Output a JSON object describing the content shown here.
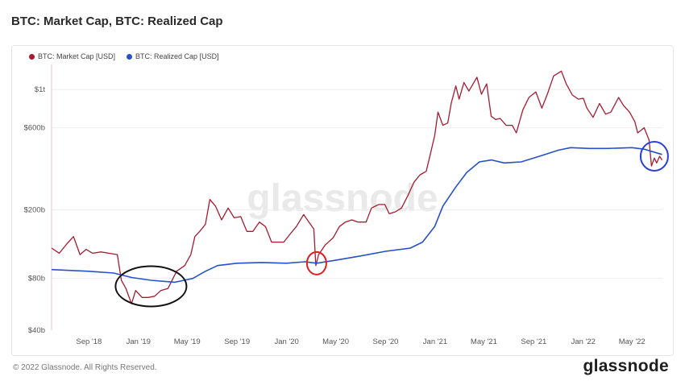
{
  "header": {
    "title": "BTC: Market Cap, BTC: Realized Cap"
  },
  "footer": {
    "copyright": "© 2022 Glassnode. All Rights Reserved.",
    "logo": "glassnode"
  },
  "watermark": "glassnode",
  "colors": {
    "market_cap": "#a51c30",
    "realized_cap": "#2751c9",
    "annotation_black": "#111111",
    "annotation_red": "#e11d1d",
    "annotation_blue": "#2b3fd4"
  },
  "chart_data": {
    "type": "line",
    "title": "BTC: Market Cap, BTC: Realized Cap",
    "y_scale": "log",
    "ylim": [
      40,
      1400
    ],
    "y_ticks": [
      {
        "value": 40,
        "label": "$40b"
      },
      {
        "value": 80,
        "label": "$80b"
      },
      {
        "value": 200,
        "label": "$200b"
      },
      {
        "value": 600,
        "label": "$600b"
      },
      {
        "value": 1000,
        "label": "$1t"
      }
    ],
    "x_range": [
      "2018-06-01",
      "2022-07-15"
    ],
    "x_ticks": [
      {
        "date": "2018-09-01",
        "label": "Sep '18"
      },
      {
        "date": "2019-01-01",
        "label": "Jan '19"
      },
      {
        "date": "2019-05-01",
        "label": "May '19"
      },
      {
        "date": "2019-09-01",
        "label": "Sep '19"
      },
      {
        "date": "2020-01-01",
        "label": "Jan '20"
      },
      {
        "date": "2020-05-01",
        "label": "May '20"
      },
      {
        "date": "2020-09-01",
        "label": "Sep '20"
      },
      {
        "date": "2021-01-01",
        "label": "Jan '21"
      },
      {
        "date": "2021-05-01",
        "label": "May '21"
      },
      {
        "date": "2021-09-01",
        "label": "Sep '21"
      },
      {
        "date": "2022-01-01",
        "label": "Jan '22"
      },
      {
        "date": "2022-05-01",
        "label": "May '22"
      }
    ],
    "grid": true,
    "legend_position": "top-left",
    "series": [
      {
        "name": "BTC: Market Cap [USD]",
        "color": "#a51c30",
        "points": [
          [
            "2018-06-01",
            120
          ],
          [
            "2018-06-20",
            112
          ],
          [
            "2018-07-10",
            128
          ],
          [
            "2018-07-25",
            140
          ],
          [
            "2018-08-10",
            110
          ],
          [
            "2018-08-25",
            118
          ],
          [
            "2018-09-10",
            112
          ],
          [
            "2018-10-01",
            114
          ],
          [
            "2018-10-20",
            112
          ],
          [
            "2018-11-10",
            110
          ],
          [
            "2018-11-20",
            78
          ],
          [
            "2018-12-01",
            70
          ],
          [
            "2018-12-15",
            57
          ],
          [
            "2018-12-25",
            68
          ],
          [
            "2019-01-10",
            62
          ],
          [
            "2019-01-25",
            62
          ],
          [
            "2019-02-10",
            63
          ],
          [
            "2019-02-25",
            68
          ],
          [
            "2019-03-15",
            70
          ],
          [
            "2019-04-05",
            88
          ],
          [
            "2019-04-25",
            95
          ],
          [
            "2019-05-10",
            110
          ],
          [
            "2019-05-20",
            140
          ],
          [
            "2019-06-01",
            150
          ],
          [
            "2019-06-15",
            165
          ],
          [
            "2019-06-26",
            230
          ],
          [
            "2019-07-10",
            210
          ],
          [
            "2019-07-25",
            175
          ],
          [
            "2019-08-10",
            205
          ],
          [
            "2019-08-25",
            180
          ],
          [
            "2019-09-10",
            183
          ],
          [
            "2019-09-25",
            150
          ],
          [
            "2019-10-10",
            150
          ],
          [
            "2019-10-26",
            170
          ],
          [
            "2019-11-10",
            160
          ],
          [
            "2019-11-25",
            130
          ],
          [
            "2019-12-10",
            130
          ],
          [
            "2019-12-25",
            130
          ],
          [
            "2020-01-10",
            145
          ],
          [
            "2020-01-25",
            160
          ],
          [
            "2020-02-12",
            188
          ],
          [
            "2020-02-25",
            170
          ],
          [
            "2020-03-08",
            155
          ],
          [
            "2020-03-13",
            95
          ],
          [
            "2020-03-20",
            110
          ],
          [
            "2020-04-05",
            125
          ],
          [
            "2020-04-25",
            138
          ],
          [
            "2020-05-10",
            160
          ],
          [
            "2020-05-25",
            170
          ],
          [
            "2020-06-10",
            175
          ],
          [
            "2020-06-25",
            170
          ],
          [
            "2020-07-15",
            170
          ],
          [
            "2020-07-28",
            205
          ],
          [
            "2020-08-15",
            215
          ],
          [
            "2020-08-30",
            215
          ],
          [
            "2020-09-10",
            190
          ],
          [
            "2020-09-25",
            195
          ],
          [
            "2020-10-10",
            205
          ],
          [
            "2020-10-25",
            240
          ],
          [
            "2020-11-10",
            290
          ],
          [
            "2020-11-25",
            320
          ],
          [
            "2020-12-10",
            335
          ],
          [
            "2020-12-20",
            420
          ],
          [
            "2020-12-31",
            540
          ],
          [
            "2021-01-08",
            740
          ],
          [
            "2021-01-20",
            620
          ],
          [
            "2021-02-01",
            640
          ],
          [
            "2021-02-10",
            840
          ],
          [
            "2021-02-21",
            1050
          ],
          [
            "2021-03-01",
            880
          ],
          [
            "2021-03-13",
            1100
          ],
          [
            "2021-03-25",
            980
          ],
          [
            "2021-04-14",
            1180
          ],
          [
            "2021-04-25",
            940
          ],
          [
            "2021-05-08",
            1080
          ],
          [
            "2021-05-19",
            700
          ],
          [
            "2021-05-30",
            670
          ],
          [
            "2021-06-10",
            680
          ],
          [
            "2021-06-25",
            620
          ],
          [
            "2021-07-10",
            620
          ],
          [
            "2021-07-20",
            560
          ],
          [
            "2021-08-05",
            760
          ],
          [
            "2021-08-20",
            900
          ],
          [
            "2021-09-06",
            970
          ],
          [
            "2021-09-21",
            780
          ],
          [
            "2021-10-05",
            950
          ],
          [
            "2021-10-20",
            1200
          ],
          [
            "2021-11-08",
            1280
          ],
          [
            "2021-11-20",
            1080
          ],
          [
            "2021-12-05",
            930
          ],
          [
            "2021-12-20",
            880
          ],
          [
            "2022-01-01",
            890
          ],
          [
            "2022-01-10",
            780
          ],
          [
            "2022-01-25",
            690
          ],
          [
            "2022-02-10",
            830
          ],
          [
            "2022-02-25",
            720
          ],
          [
            "2022-03-10",
            740
          ],
          [
            "2022-03-29",
            900
          ],
          [
            "2022-04-10",
            810
          ],
          [
            "2022-04-25",
            740
          ],
          [
            "2022-05-08",
            650
          ],
          [
            "2022-05-15",
            560
          ],
          [
            "2022-05-31",
            600
          ],
          [
            "2022-06-12",
            510
          ],
          [
            "2022-06-18",
            360
          ],
          [
            "2022-06-25",
            400
          ],
          [
            "2022-07-01",
            375
          ],
          [
            "2022-07-08",
            410
          ],
          [
            "2022-07-14",
            390
          ]
        ]
      },
      {
        "name": "BTC: Realized Cap [USD]",
        "color": "#2751c9",
        "points": [
          [
            "2018-06-01",
            90
          ],
          [
            "2018-09-01",
            88
          ],
          [
            "2018-11-01",
            86
          ],
          [
            "2018-12-15",
            81
          ],
          [
            "2019-02-01",
            78
          ],
          [
            "2019-04-01",
            76
          ],
          [
            "2019-05-15",
            80
          ],
          [
            "2019-06-15",
            88
          ],
          [
            "2019-07-15",
            95
          ],
          [
            "2019-09-01",
            98
          ],
          [
            "2019-11-01",
            99
          ],
          [
            "2020-01-01",
            98
          ],
          [
            "2020-02-15",
            100
          ],
          [
            "2020-03-15",
            98
          ],
          [
            "2020-05-01",
            102
          ],
          [
            "2020-07-01",
            108
          ],
          [
            "2020-09-01",
            115
          ],
          [
            "2020-11-01",
            120
          ],
          [
            "2020-12-01",
            130
          ],
          [
            "2020-12-31",
            160
          ],
          [
            "2021-01-20",
            210
          ],
          [
            "2021-02-20",
            270
          ],
          [
            "2021-03-20",
            330
          ],
          [
            "2021-04-20",
            380
          ],
          [
            "2021-05-20",
            390
          ],
          [
            "2021-06-20",
            375
          ],
          [
            "2021-08-01",
            380
          ],
          [
            "2021-09-15",
            410
          ],
          [
            "2021-11-01",
            445
          ],
          [
            "2021-12-01",
            460
          ],
          [
            "2022-01-15",
            455
          ],
          [
            "2022-03-01",
            455
          ],
          [
            "2022-05-01",
            460
          ],
          [
            "2022-06-01",
            450
          ],
          [
            "2022-07-14",
            420
          ]
        ]
      }
    ],
    "annotations": [
      {
        "shape": "ellipse",
        "color": "black",
        "center": [
          "2019-02-01",
          72
        ]
      },
      {
        "shape": "circle",
        "color": "red",
        "center": [
          "2020-03-15",
          98
        ]
      },
      {
        "shape": "circle",
        "color": "blue",
        "center": [
          "2022-06-25",
          410
        ]
      }
    ]
  }
}
